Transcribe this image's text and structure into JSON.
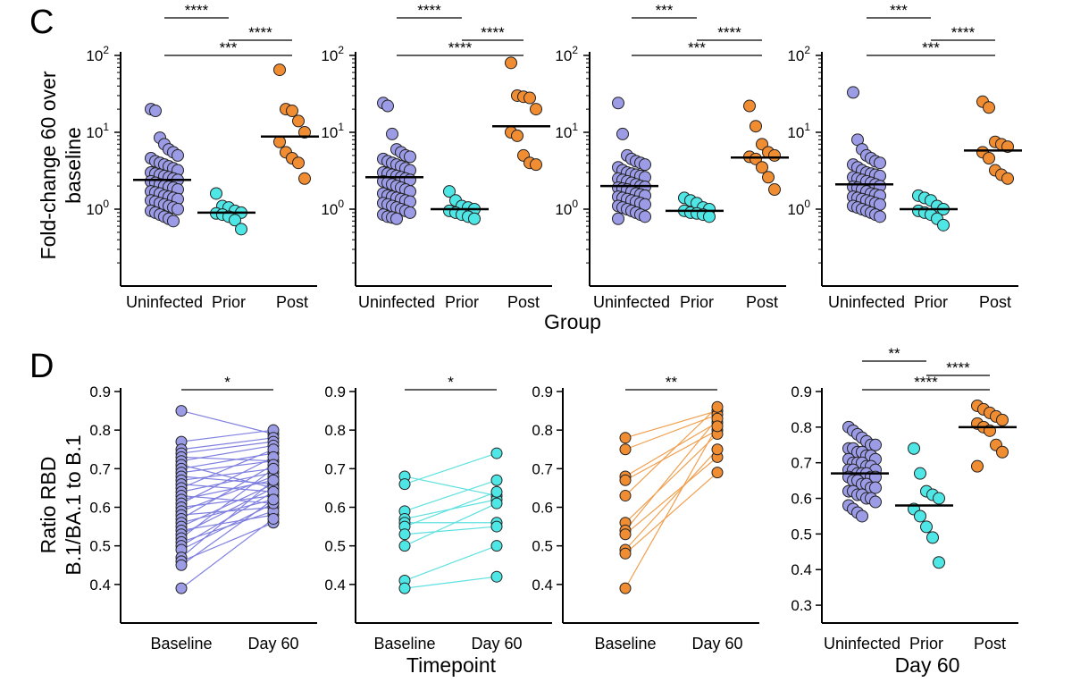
{
  "panels_meta": {
    "C": {
      "label": "C",
      "ylabel_line1": "Fold-change 60 over",
      "ylabel_line2": "baseline",
      "xlabel": "Group"
    },
    "D": {
      "label": "D",
      "ylabel_line1": "Ratio RBD",
      "ylabel_line2": "B.1/BA.1 to B.1",
      "xlabel_paired": "Timepoint",
      "xlabel_day60": "Day 60"
    }
  },
  "colors": {
    "uninfected": "#9b9be6",
    "prior": "#4fe6e6",
    "post": "#f08c32",
    "uninfected_line": "#8080e0",
    "prior_line": "#5fe0e0",
    "post_line": "#f0a050"
  },
  "chart_data": [
    {
      "id": "C1",
      "type": "scatter",
      "scale": "log",
      "categories": [
        "Uninfected",
        "Prior",
        "Post"
      ],
      "ylim": [
        0.1,
        100
      ],
      "ytick_labels": [
        [
          "10",
          "2"
        ],
        [
          "10",
          "1"
        ],
        [
          "10",
          "0"
        ]
      ],
      "series": [
        {
          "name": "Uninfected",
          "median": 2.4,
          "values": [
            20,
            19,
            8.5,
            7,
            6,
            5.5,
            5,
            4.6,
            4.2,
            4,
            3.8,
            3.6,
            3.4,
            3.2,
            3,
            2.9,
            2.8,
            2.7,
            2.6,
            2.5,
            2.4,
            2.3,
            2.2,
            2.1,
            2,
            1.95,
            1.9,
            1.8,
            1.7,
            1.65,
            1.6,
            1.5,
            1.45,
            1.4,
            1.35,
            1.3,
            1.25,
            1.2,
            1.15,
            1.1,
            1.05,
            1,
            0.95,
            0.9,
            0.85,
            0.8,
            0.75,
            0.7
          ]
        },
        {
          "name": "Prior",
          "median": 0.9,
          "values": [
            1.6,
            1.1,
            1.05,
            0.95,
            0.9,
            0.88,
            0.85,
            0.8,
            0.72,
            0.55
          ]
        },
        {
          "name": "Post",
          "median": 8.8,
          "values": [
            65,
            20,
            19,
            14,
            10,
            7.5,
            5.5,
            4.6,
            4,
            2.5
          ]
        }
      ],
      "annotations": [
        "****",
        "****",
        "***"
      ]
    },
    {
      "id": "C2",
      "type": "scatter",
      "scale": "log",
      "categories": [
        "Uninfected",
        "Prior",
        "Post"
      ],
      "ylim": [
        0.1,
        100
      ],
      "ytick_labels": [
        [
          "10",
          "2"
        ],
        [
          "10",
          "1"
        ],
        [
          "10",
          "0"
        ]
      ],
      "series": [
        {
          "name": "Uninfected",
          "median": 2.6,
          "values": [
            24,
            22,
            9.5,
            6,
            5.5,
            5,
            4.8,
            4.5,
            4.2,
            4,
            3.8,
            3.6,
            3.4,
            3.2,
            3,
            2.9,
            2.8,
            2.7,
            2.6,
            2.5,
            2.4,
            2.3,
            2.2,
            2.1,
            2,
            1.9,
            1.8,
            1.7,
            1.6,
            1.5,
            1.45,
            1.4,
            1.35,
            1.3,
            1.25,
            1.2,
            1.15,
            1.1,
            1.05,
            1,
            0.95,
            0.9,
            0.85,
            0.8,
            0.78,
            0.75
          ]
        },
        {
          "name": "Prior",
          "median": 1.0,
          "values": [
            1.7,
            1.3,
            1.1,
            1.05,
            1,
            0.95,
            0.9,
            0.85,
            0.8,
            0.75
          ]
        },
        {
          "name": "Post",
          "median": 12,
          "values": [
            80,
            30,
            29,
            28,
            20,
            10,
            9,
            5,
            4,
            3.8
          ]
        }
      ],
      "annotations": [
        "****",
        "****",
        "****"
      ]
    },
    {
      "id": "C3",
      "type": "scatter",
      "scale": "log",
      "categories": [
        "Uninfected",
        "Prior",
        "Post"
      ],
      "ylim": [
        0.1,
        100
      ],
      "ytick_labels": [
        [
          "10",
          "2"
        ],
        [
          "10",
          "1"
        ],
        [
          "10",
          "0"
        ]
      ],
      "series": [
        {
          "name": "Uninfected",
          "median": 2.0,
          "values": [
            24,
            9.5,
            5,
            4.5,
            4.2,
            4,
            3.8,
            3.5,
            3.2,
            3,
            2.9,
            2.8,
            2.7,
            2.6,
            2.5,
            2.4,
            2.3,
            2.2,
            2.1,
            2,
            1.95,
            1.9,
            1.85,
            1.8,
            1.7,
            1.6,
            1.55,
            1.5,
            1.45,
            1.4,
            1.35,
            1.3,
            1.25,
            1.2,
            1.15,
            1.1,
            1.05,
            1,
            0.95,
            0.9,
            0.85,
            0.8,
            0.75
          ]
        },
        {
          "name": "Prior",
          "median": 0.95,
          "values": [
            1.4,
            1.3,
            1.2,
            1.05,
            1,
            0.95,
            0.9,
            0.88,
            0.85,
            0.8
          ]
        },
        {
          "name": "Post",
          "median": 4.7,
          "values": [
            22,
            12,
            7,
            5.5,
            5,
            4.8,
            4.5,
            3.5,
            2.6,
            1.8
          ]
        }
      ],
      "annotations": [
        "***",
        "****",
        "***"
      ]
    },
    {
      "id": "C4",
      "type": "scatter",
      "scale": "log",
      "categories": [
        "Uninfected",
        "Prior",
        "Post"
      ],
      "ylim": [
        0.1,
        100
      ],
      "ytick_labels": [
        [
          "10",
          "2"
        ],
        [
          "10",
          "1"
        ],
        [
          "10",
          "0"
        ]
      ],
      "series": [
        {
          "name": "Uninfected",
          "median": 2.1,
          "values": [
            33,
            8,
            6,
            5,
            4.6,
            4.2,
            4,
            3.8,
            3.5,
            3.2,
            3,
            2.9,
            2.8,
            2.7,
            2.6,
            2.5,
            2.4,
            2.3,
            2.2,
            2.1,
            2,
            1.95,
            1.9,
            1.8,
            1.7,
            1.6,
            1.55,
            1.5,
            1.45,
            1.4,
            1.35,
            1.3,
            1.25,
            1.2,
            1.15,
            1.1,
            1.05,
            1,
            0.95,
            0.9,
            0.85,
            0.8
          ]
        },
        {
          "name": "Prior",
          "median": 1.0,
          "values": [
            1.5,
            1.4,
            1.3,
            1.1,
            1,
            0.95,
            0.9,
            0.85,
            0.75,
            0.62
          ]
        },
        {
          "name": "Post",
          "median": 5.8,
          "values": [
            25,
            21,
            7.5,
            7,
            6.5,
            5.5,
            4.6,
            3.2,
            2.8,
            2.5
          ]
        }
      ],
      "annotations": [
        "***",
        "****",
        "***"
      ]
    },
    {
      "id": "D1",
      "type": "line",
      "paired": true,
      "group": "uninfected",
      "categories": [
        "Baseline",
        "Day 60"
      ],
      "ylim": [
        0.3,
        0.9
      ],
      "yticks": [
        0.4,
        0.5,
        0.6,
        0.7,
        0.8,
        0.9
      ],
      "ytick_labels": [
        "0.4",
        "0.5",
        "0.6",
        "0.7",
        "0.8",
        "0.9"
      ],
      "pairs": [
        [
          0.85,
          0.79
        ],
        [
          0.77,
          0.8
        ],
        [
          0.75,
          0.78
        ],
        [
          0.74,
          0.77
        ],
        [
          0.73,
          0.72
        ],
        [
          0.72,
          0.76
        ],
        [
          0.71,
          0.65
        ],
        [
          0.7,
          0.74
        ],
        [
          0.69,
          0.72
        ],
        [
          0.68,
          0.66
        ],
        [
          0.67,
          0.7
        ],
        [
          0.66,
          0.64
        ],
        [
          0.65,
          0.75
        ],
        [
          0.64,
          0.69
        ],
        [
          0.63,
          0.61
        ],
        [
          0.62,
          0.67
        ],
        [
          0.61,
          0.73
        ],
        [
          0.6,
          0.63
        ],
        [
          0.59,
          0.68
        ],
        [
          0.58,
          0.6
        ],
        [
          0.57,
          0.71
        ],
        [
          0.56,
          0.62
        ],
        [
          0.55,
          0.66
        ],
        [
          0.54,
          0.58
        ],
        [
          0.53,
          0.65
        ],
        [
          0.52,
          0.7
        ],
        [
          0.51,
          0.59
        ],
        [
          0.5,
          0.64
        ],
        [
          0.49,
          0.61
        ],
        [
          0.47,
          0.67
        ],
        [
          0.46,
          0.56
        ],
        [
          0.45,
          0.62
        ],
        [
          0.39,
          0.57
        ]
      ],
      "annotations": [
        "*"
      ]
    },
    {
      "id": "D2",
      "type": "line",
      "paired": true,
      "group": "prior",
      "categories": [
        "Baseline",
        "Day 60"
      ],
      "ylim": [
        0.3,
        0.9
      ],
      "yticks": [
        0.4,
        0.5,
        0.6,
        0.7,
        0.8,
        0.9
      ],
      "ytick_labels": [
        "0.4",
        "0.5",
        "0.6",
        "0.7",
        "0.8",
        "0.9"
      ],
      "pairs": [
        [
          0.68,
          0.63
        ],
        [
          0.66,
          0.74
        ],
        [
          0.59,
          0.67
        ],
        [
          0.57,
          0.62
        ],
        [
          0.56,
          0.56
        ],
        [
          0.55,
          0.64
        ],
        [
          0.53,
          0.55
        ],
        [
          0.5,
          0.61
        ],
        [
          0.41,
          0.5
        ],
        [
          0.39,
          0.42
        ]
      ],
      "annotations": [
        "*"
      ]
    },
    {
      "id": "D3",
      "type": "line",
      "paired": true,
      "group": "post",
      "categories": [
        "Baseline",
        "Day 60"
      ],
      "ylim": [
        0.3,
        0.9
      ],
      "yticks": [
        0.4,
        0.5,
        0.6,
        0.7,
        0.8,
        0.9
      ],
      "ytick_labels": [
        "0.4",
        "0.5",
        "0.6",
        "0.7",
        "0.8",
        "0.9"
      ],
      "pairs": [
        [
          0.78,
          0.85
        ],
        [
          0.75,
          0.84
        ],
        [
          0.68,
          0.82
        ],
        [
          0.67,
          0.8
        ],
        [
          0.63,
          0.86
        ],
        [
          0.56,
          0.79
        ],
        [
          0.54,
          0.83
        ],
        [
          0.53,
          0.73
        ],
        [
          0.49,
          0.75
        ],
        [
          0.48,
          0.69
        ],
        [
          0.39,
          0.81
        ]
      ],
      "annotations": [
        "**"
      ]
    },
    {
      "id": "D4",
      "type": "scatter",
      "categories": [
        "Uninfected",
        "Prior",
        "Post"
      ],
      "ylim": [
        0.25,
        0.9
      ],
      "yticks": [
        0.3,
        0.4,
        0.5,
        0.6,
        0.7,
        0.8,
        0.9
      ],
      "ytick_labels": [
        "0.3",
        "0.4",
        "0.5",
        "0.6",
        "0.7",
        "0.8",
        "0.9"
      ],
      "series": [
        {
          "name": "Uninfected",
          "median": 0.67,
          "values": [
            0.8,
            0.79,
            0.78,
            0.77,
            0.76,
            0.75,
            0.75,
            0.74,
            0.74,
            0.73,
            0.73,
            0.72,
            0.72,
            0.71,
            0.71,
            0.7,
            0.7,
            0.7,
            0.69,
            0.69,
            0.68,
            0.68,
            0.68,
            0.67,
            0.67,
            0.67,
            0.66,
            0.66,
            0.66,
            0.65,
            0.65,
            0.64,
            0.64,
            0.63,
            0.63,
            0.62,
            0.62,
            0.61,
            0.61,
            0.6,
            0.6,
            0.59,
            0.58,
            0.57,
            0.56,
            0.55
          ]
        },
        {
          "name": "Prior",
          "median": 0.58,
          "values": [
            0.74,
            0.67,
            0.62,
            0.61,
            0.6,
            0.57,
            0.55,
            0.52,
            0.49,
            0.42
          ]
        },
        {
          "name": "Post",
          "median": 0.8,
          "values": [
            0.86,
            0.85,
            0.84,
            0.83,
            0.82,
            0.81,
            0.8,
            0.79,
            0.75,
            0.73,
            0.69
          ]
        }
      ],
      "annotations": [
        "**",
        "****",
        "****"
      ]
    }
  ]
}
